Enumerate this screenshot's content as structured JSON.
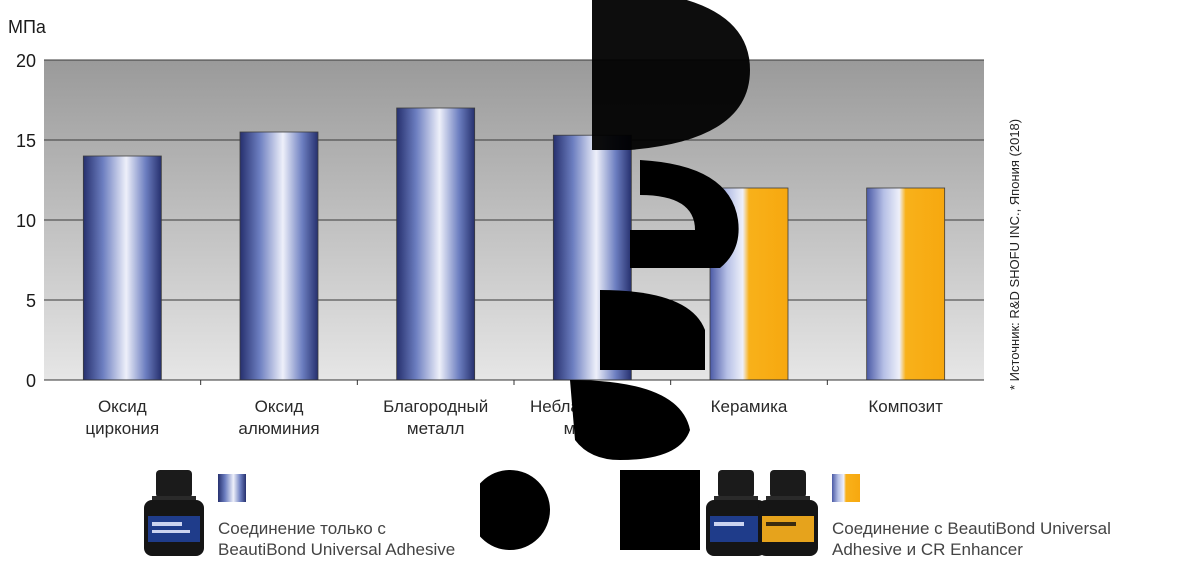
{
  "chart_data": {
    "type": "bar",
    "ylabel": "МПа",
    "ylim": [
      0,
      20
    ],
    "yticks": [
      0,
      5,
      10,
      15,
      20
    ],
    "grid": true,
    "categories": [
      [
        "Оксид",
        "циркония"
      ],
      [
        "Оксид",
        "алюминия"
      ],
      [
        "Благородный",
        "металл"
      ],
      [
        "Неблагородный",
        "металл"
      ],
      [
        "Керамика"
      ],
      [
        "Композит"
      ]
    ],
    "values": [
      14,
      15.5,
      17,
      15.3,
      12,
      12
    ],
    "bar_styles": [
      "adhesive",
      "adhesive",
      "adhesive",
      "adhesive",
      "enhancer",
      "enhancer"
    ]
  },
  "source_note": "* Источник: R&D SHOFU INC., Япония (2018)",
  "legend": [
    {
      "style": "adhesive",
      "lines": [
        "Соединение только с",
        "BeautiBond Universal Adhesive"
      ]
    },
    {
      "style": "enhancer",
      "lines": [
        "Соединение с BeautiBond Universal",
        "Adhesive и CR Enhancer"
      ]
    }
  ],
  "colors": {
    "adhesive_dark": "#26306e",
    "adhesive_mid": "#6c7ec0",
    "adhesive_light": "#eef0fa",
    "enhancer": "#f8b11a",
    "plot_top": "#9a9a9a",
    "plot_bottom": "#e6e6e6"
  }
}
